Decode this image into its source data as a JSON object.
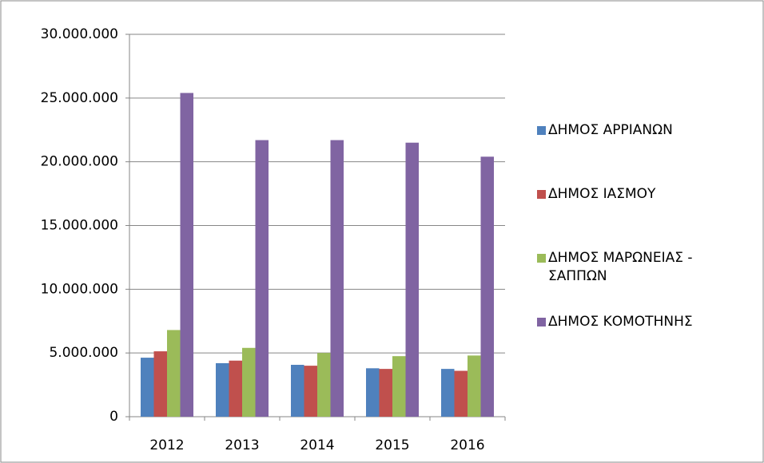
{
  "chart_data": {
    "type": "bar",
    "categories": [
      "2012",
      "2013",
      "2014",
      "2015",
      "2016"
    ],
    "series": [
      {
        "name": "ΔΗΜΟΣ  ΑΡΡΙΑΝΩΝ",
        "color": "#4f81bd",
        "values": [
          4630000,
          4200000,
          4070000,
          3800000,
          3750000
        ]
      },
      {
        "name": "ΔΗΜΟΣ  ΙΑΣΜΟΥ",
        "color": "#c0504d",
        "values": [
          5130000,
          4400000,
          4000000,
          3750000,
          3600000
        ]
      },
      {
        "name": "ΔΗΜΟΣ  ΜΑΡΩΝΕΙΑΣ - ΣΑΠΠΩΝ",
        "color": "#9bbb59",
        "values": [
          6800000,
          5400000,
          5000000,
          4750000,
          4800000
        ]
      },
      {
        "name": "ΔΗΜΟΣ ΚΟΜΟΤΗΝΗΣ",
        "color": "#8064a2",
        "values": [
          25400000,
          21700000,
          21700000,
          21500000,
          20400000
        ]
      }
    ],
    "ylim": [
      0,
      30000000
    ],
    "yticks": [
      0,
      {
        "value": 5000000,
        "label": "5.000.000"
      },
      {
        "value": 10000000,
        "label": "10.000.000"
      },
      {
        "value": 15000000,
        "label": "15.000.000"
      },
      {
        "value": 20000000,
        "label": "20.000.000"
      },
      {
        "value": 25000000,
        "label": "25.000.000"
      },
      {
        "value": 30000000,
        "label": "30.000.000"
      }
    ],
    "grid": true,
    "legend": "right"
  }
}
